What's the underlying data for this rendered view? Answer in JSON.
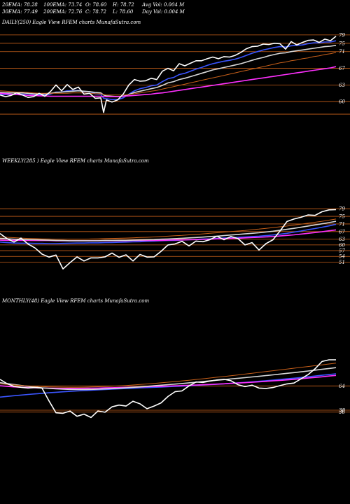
{
  "header": {
    "row1": [
      "20EMA: 78.28",
      "100EMA: 73.74",
      "O: 78.60",
      "H: 78.72",
      "Avg Vol: 0.004 M"
    ],
    "row2": [
      "30EMA: 77.49",
      "200EMA: 72.76",
      "C: 78.72",
      "L: 78.60",
      "Day Vol: 0.004 M"
    ]
  },
  "colors": {
    "background": "#000000",
    "price": "#ffffff",
    "ema_blue": "#3a55ff",
    "ema_magenta": "#ff30ff",
    "ema_white": "#d8d8d8",
    "ema_orange": "#c8601a",
    "level_line": "#c8601a"
  },
  "chart_data": [
    {
      "type": "line",
      "title": "DAILY(250) Eagle View RFEM charts MunafaSutra.com",
      "ylabels": [
        "79",
        "75",
        "71",
        "67",
        "63",
        "60"
      ],
      "levels": [
        79,
        77,
        75,
        71,
        67,
        63,
        60
      ],
      "ylim": [
        58.5,
        81
      ],
      "x": [
        0,
        8,
        16,
        24,
        32,
        40,
        48,
        56,
        64,
        72,
        80,
        88,
        96,
        104,
        112,
        120,
        128,
        136,
        144,
        148,
        152,
        160,
        168,
        176,
        184,
        192,
        200,
        208,
        216,
        224,
        232,
        240,
        248,
        256,
        264,
        272,
        280,
        288,
        296,
        304,
        312,
        320,
        328,
        336,
        344,
        352,
        360,
        368,
        376,
        384,
        392,
        400,
        408,
        416,
        424,
        432,
        440,
        448,
        456,
        464,
        472,
        480
      ],
      "series": [
        {
          "kind": "price",
          "values": [
            64.6,
            64.2,
            64.5,
            65.1,
            64.6,
            64.0,
            64.2,
            65.0,
            64.3,
            65.4,
            67.0,
            65.6,
            67.1,
            65.9,
            66.5,
            64.8,
            65.0,
            63.8,
            63.9,
            60.4,
            63.4,
            62.9,
            63.4,
            64.8,
            67.0,
            68.3,
            67.9,
            68.0,
            68.6,
            68.3,
            70.3,
            71.0,
            70.4,
            72.1,
            71.6,
            72.2,
            72.8,
            72.8,
            73.3,
            73.7,
            73.3,
            73.8,
            73.7,
            74.1,
            74.8,
            75.7,
            76.2,
            76.3,
            76.8,
            76.7,
            77.0,
            76.9,
            75.6,
            77.4,
            76.6,
            77.2,
            77.7,
            77.8,
            77.2,
            78.0,
            77.6,
            78.7
          ]
        },
        {
          "kind": "ema",
          "color": "#3a55ff",
          "values": [
            64.8,
            64.7,
            64.7,
            64.8,
            64.8,
            64.6,
            64.6,
            64.7,
            64.6,
            64.8,
            65.3,
            65.3,
            65.6,
            65.6,
            65.7,
            65.4,
            65.4,
            64.9,
            64.8,
            63.8,
            63.7,
            63.5,
            63.5,
            63.9,
            64.8,
            65.6,
            66.1,
            66.4,
            66.8,
            67.0,
            67.8,
            68.5,
            68.8,
            69.5,
            69.8,
            70.3,
            70.8,
            71.2,
            71.7,
            72.1,
            72.4,
            72.7,
            72.9,
            73.2,
            73.6,
            74.1,
            74.6,
            75.0,
            75.4,
            75.7,
            76.0,
            76.2,
            76.1,
            76.4,
            76.5,
            76.6,
            76.9,
            77.1,
            77.1,
            77.3,
            77.3,
            77.6
          ]
        },
        {
          "kind": "ema",
          "color": "#d8d8d8",
          "values": [
            65.2,
            65.1,
            65.1,
            65.1,
            65.1,
            65.0,
            64.9,
            64.9,
            64.9,
            65.0,
            65.2,
            65.3,
            65.4,
            65.5,
            65.6,
            65.5,
            65.4,
            65.2,
            65.1,
            64.6,
            64.4,
            64.3,
            64.2,
            64.3,
            64.7,
            65.2,
            65.5,
            65.8,
            66.1,
            66.4,
            66.9,
            67.5,
            67.8,
            68.3,
            68.6,
            69.0,
            69.4,
            69.8,
            70.2,
            70.6,
            70.9,
            71.2,
            71.5,
            71.8,
            72.1,
            72.5,
            72.9,
            73.3,
            73.6,
            74.0,
            74.3,
            74.6,
            74.7,
            75.0,
            75.2,
            75.4,
            75.6,
            75.8,
            76.0,
            76.2,
            76.3,
            76.5
          ]
        },
        {
          "kind": "ema",
          "color": "#c8601a",
          "values": [
            65.6,
            65.5,
            65.4,
            65.3,
            65.3,
            65.2,
            65.1,
            65.0,
            65.0,
            65.0,
            65.0,
            65.0,
            65.0,
            65.1,
            65.1,
            65.1,
            65.0,
            64.9,
            64.9,
            64.7,
            64.6,
            64.6,
            64.6,
            64.6,
            64.7,
            64.9,
            65.1,
            65.3,
            65.5,
            65.7,
            66.0,
            66.3,
            66.6,
            66.9,
            67.2,
            67.5,
            67.8,
            68.1,
            68.4,
            68.7,
            69.0,
            69.3,
            69.6,
            69.9,
            70.2,
            70.5,
            70.8,
            71.1,
            71.4,
            71.7,
            72.0,
            72.3,
            72.5,
            72.8,
            73.0,
            73.3,
            73.5,
            73.8,
            74.0,
            74.3,
            74.5,
            74.8
          ]
        },
        {
          "kind": "ema",
          "color": "#ff30ff",
          "values": [
            65.0,
            64.9,
            64.8,
            64.7,
            64.6,
            64.5,
            64.5,
            64.4,
            64.4,
            64.3,
            64.3,
            64.3,
            64.3,
            64.3,
            64.3,
            64.3,
            64.3,
            64.3,
            64.3,
            64.2,
            64.2,
            64.2,
            64.2,
            64.3,
            64.4,
            64.5,
            64.6,
            64.7,
            64.8,
            65.0,
            65.1,
            65.3,
            65.5,
            65.7,
            65.9,
            66.1,
            66.3,
            66.5,
            66.7,
            66.9,
            67.1,
            67.3,
            67.5,
            67.7,
            67.9,
            68.1,
            68.3,
            68.5,
            68.7,
            68.9,
            69.1,
            69.3,
            69.5,
            69.7,
            69.9,
            70.1,
            70.3,
            70.5,
            70.7,
            70.9,
            71.1,
            71.4
          ]
        }
      ]
    },
    {
      "type": "line",
      "title": "WEEKLY(285                ) Eagle View RFEM charts MunafaSutra.com",
      "ylabels": [
        "79",
        "75",
        "71",
        "67",
        "63",
        "60",
        "57",
        "54",
        "51"
      ],
      "levels": [
        79,
        75,
        71,
        67,
        63,
        60,
        57,
        54,
        51
      ],
      "ylim": [
        46,
        82
      ],
      "x": [
        0,
        10,
        20,
        30,
        40,
        50,
        60,
        70,
        80,
        90,
        100,
        110,
        120,
        130,
        140,
        150,
        160,
        170,
        180,
        190,
        200,
        210,
        220,
        230,
        240,
        250,
        260,
        270,
        280,
        290,
        300,
        310,
        320,
        330,
        340,
        350,
        360,
        370,
        380,
        390,
        400,
        410,
        420,
        430,
        440,
        450,
        460,
        470,
        480
      ],
      "series": [
        {
          "kind": "price",
          "values": [
            66.0,
            63.3,
            61.5,
            63.6,
            60.5,
            58.4,
            55.2,
            53.6,
            54.7,
            47.4,
            50.7,
            53.7,
            51.6,
            53.2,
            53.2,
            53.7,
            55.7,
            53.5,
            54.8,
            51.6,
            55.0,
            53.6,
            53.7,
            56.6,
            60.0,
            60.5,
            61.9,
            59.5,
            62.0,
            61.7,
            62.8,
            64.6,
            62.7,
            64.4,
            63.3,
            60.0,
            61.2,
            57.3,
            60.7,
            62.7,
            67.3,
            72.3,
            73.6,
            74.5,
            75.7,
            75.5,
            77.4,
            78.4,
            78.5
          ]
        },
        {
          "kind": "ema",
          "color": "#3a55ff",
          "values": [
            61.5,
            61.2,
            61.0,
            60.9,
            60.9,
            60.8,
            60.8,
            60.7,
            60.7,
            60.8,
            60.9,
            61.0,
            61.0,
            61.1,
            61.1,
            61.2,
            61.3,
            61.4,
            61.5,
            61.6,
            61.7,
            61.9,
            62.0,
            62.2,
            62.3,
            62.4,
            62.6,
            62.7,
            62.9,
            63.1,
            63.2,
            63.4,
            63.6,
            63.8,
            64.0,
            64.2,
            64.4,
            64.6,
            64.9,
            65.2,
            65.6,
            66.1,
            66.7,
            67.3,
            68.0,
            68.6,
            69.3,
            70.0,
            70.8
          ]
        },
        {
          "kind": "ema",
          "color": "#ff30ff",
          "values": [
            62.5,
            62.4,
            62.4,
            62.4,
            62.4,
            62.3,
            62.3,
            62.3,
            62.2,
            62.2,
            62.2,
            62.2,
            62.2,
            62.2,
            62.2,
            62.2,
            62.2,
            62.2,
            62.2,
            62.3,
            62.3,
            62.3,
            62.4,
            62.4,
            62.5,
            62.6,
            62.6,
            62.7,
            62.8,
            62.9,
            63.0,
            63.2,
            63.3,
            63.4,
            63.5,
            63.7,
            63.9,
            64.0,
            64.2,
            64.4,
            64.7,
            65.0,
            65.3,
            65.7,
            66.1,
            66.5,
            66.9,
            67.4,
            67.9
          ]
        },
        {
          "kind": "ema",
          "color": "#d8d8d8",
          "values": [
            63.4,
            63.2,
            63.0,
            62.9,
            62.8,
            62.7,
            62.6,
            62.5,
            62.4,
            62.3,
            62.2,
            62.2,
            62.2,
            62.2,
            62.2,
            62.3,
            62.3,
            62.4,
            62.4,
            62.5,
            62.6,
            62.7,
            62.8,
            63.0,
            63.1,
            63.3,
            63.5,
            63.7,
            63.9,
            64.1,
            64.4,
            64.6,
            64.9,
            65.2,
            65.5,
            65.8,
            66.1,
            66.4,
            66.8,
            67.2,
            67.7,
            68.2,
            68.7,
            69.3,
            69.9,
            70.5,
            71.1,
            71.7,
            72.4
          ]
        },
        {
          "kind": "ema",
          "color": "#c8601a",
          "values": [
            64.2,
            64.0,
            63.8,
            63.6,
            63.4,
            63.3,
            63.2,
            63.1,
            63.0,
            63.0,
            63.0,
            63.0,
            63.0,
            63.1,
            63.2,
            63.3,
            63.4,
            63.5,
            63.6,
            63.7,
            63.9,
            64.0,
            64.2,
            64.4,
            64.6,
            64.8,
            65.0,
            65.3,
            65.5,
            65.8,
            66.1,
            66.4,
            66.7,
            67.0,
            67.3,
            67.6,
            68.0,
            68.3,
            68.7,
            69.1,
            69.5,
            69.9,
            70.4,
            70.9,
            71.4,
            71.9,
            72.4,
            73.0,
            73.6
          ]
        }
      ]
    },
    {
      "type": "line",
      "title": "MONTHLY(48) Eagle View RFEM charts MunafaSutra.com",
      "ylabels": [
        "64",
        "36",
        "38"
      ],
      "levels": [
        64,
        36,
        38
      ],
      "ylim": [
        20,
        110
      ],
      "x": [
        0,
        10,
        20,
        30,
        40,
        50,
        60,
        70,
        80,
        90,
        100,
        110,
        120,
        130,
        140,
        150,
        160,
        170,
        180,
        190,
        200,
        210,
        220,
        230,
        240,
        250,
        260,
        270,
        280,
        290,
        300,
        310,
        320,
        330,
        340,
        350,
        360,
        370,
        380,
        390,
        400,
        410,
        420,
        430,
        440,
        450,
        460,
        470,
        480
      ],
      "series": [
        {
          "kind": "price",
          "values": [
            71.0,
            66.5,
            63.5,
            62.5,
            61.8,
            62.3,
            61.7,
            48.0,
            35.2,
            34.7,
            37.1,
            31.5,
            33.8,
            30.2,
            37.2,
            35.8,
            41.6,
            43.5,
            42.4,
            47.6,
            44.8,
            39.6,
            42.4,
            45.8,
            52.7,
            57.8,
            58.7,
            64.0,
            68.2,
            67.8,
            69.2,
            70.4,
            71.1,
            69.6,
            65.3,
            63.3,
            64.8,
            61.7,
            61.3,
            62.3,
            64.3,
            66.2,
            67.1,
            71.6,
            76.1,
            82.3,
            90.2,
            92.0,
            92.0
          ]
        },
        {
          "kind": "ema",
          "color": "#3a55ff",
          "values": [
            52.0,
            52.8,
            53.5,
            54.2,
            54.9,
            55.5,
            56.1,
            56.7,
            57.2,
            57.7,
            58.2,
            58.6,
            59.0,
            59.4,
            59.8,
            60.2,
            60.5,
            60.9,
            61.2,
            61.5,
            61.9,
            62.2,
            62.5,
            62.8,
            63.1,
            63.5,
            63.8,
            64.2,
            64.6,
            65.0,
            65.4,
            65.8,
            66.3,
            66.8,
            67.3,
            67.8,
            68.4,
            69.0,
            69.6,
            70.2,
            70.9,
            71.6,
            72.3,
            73.0,
            73.8,
            74.6,
            75.4,
            76.2,
            77.0
          ]
        },
        {
          "kind": "ema",
          "color": "#ff30ff",
          "values": [
            64.2,
            63.6,
            63.0,
            62.6,
            62.2,
            62.0,
            61.8,
            61.6,
            61.5,
            61.4,
            61.4,
            61.4,
            61.5,
            61.6,
            61.7,
            61.9,
            62.1,
            62.3,
            62.5,
            62.7,
            62.9,
            63.2,
            63.4,
            63.6,
            63.9,
            64.1,
            64.4,
            64.7,
            65.0,
            65.3,
            65.6,
            66.0,
            66.3,
            66.7,
            67.1,
            67.5,
            67.9,
            68.4,
            68.9,
            69.4,
            69.9,
            70.5,
            71.1,
            71.7,
            72.4,
            73.1,
            73.8,
            74.6,
            75.3
          ]
        },
        {
          "kind": "ema",
          "color": "#d8d8d8",
          "values": [
            67.5,
            66.5,
            65.5,
            64.5,
            63.6,
            62.8,
            62.0,
            61.4,
            60.9,
            60.5,
            60.3,
            60.2,
            60.2,
            60.3,
            60.5,
            60.8,
            61.1,
            61.5,
            62.0,
            62.5,
            63.0,
            63.6,
            64.2,
            64.8,
            65.4,
            66.0,
            66.6,
            67.3,
            68.0,
            68.7,
            69.4,
            70.1,
            70.8,
            71.5,
            72.2,
            72.9,
            73.6,
            74.3,
            75.1,
            75.9,
            76.7,
            77.5,
            78.3,
            79.1,
            80.0,
            80.9,
            81.8,
            82.7,
            83.6
          ]
        },
        {
          "kind": "ema",
          "color": "#c8601a",
          "values": [
            66.2,
            65.6,
            65.0,
            64.5,
            64.0,
            63.6,
            63.3,
            63.0,
            62.8,
            62.7,
            62.6,
            62.6,
            62.7,
            62.9,
            63.1,
            63.4,
            63.7,
            64.1,
            64.5,
            65.0,
            65.5,
            66.1,
            66.7,
            67.3,
            68.0,
            68.7,
            69.4,
            70.1,
            70.9,
            71.7,
            72.5,
            73.3,
            74.1,
            74.9,
            75.8,
            76.7,
            77.6,
            78.5,
            79.4,
            80.3,
            81.2,
            82.1,
            83.0,
            83.9,
            84.8,
            85.7,
            86.6,
            87.5,
            88.4
          ]
        }
      ]
    }
  ]
}
